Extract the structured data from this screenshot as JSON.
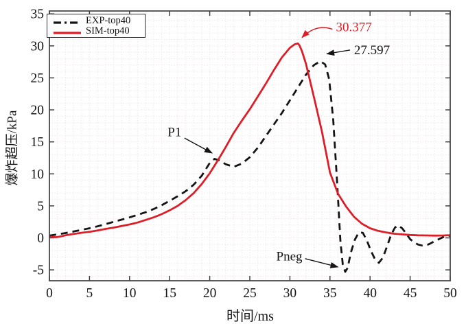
{
  "figure": {
    "background": "#ffffff",
    "axis_color": "#3f3f3f",
    "grid_color": "#efe3e3",
    "tick_label_color": "#141414"
  },
  "chart_data": {
    "type": "line",
    "title": "",
    "xlabel": "时间/ms",
    "ylabel": "爆炸超压/kPa",
    "xlim": [
      0,
      50
    ],
    "ylim": [
      -5,
      35
    ],
    "ylim_draw": [
      -6.7,
      35.45
    ],
    "xticks": [
      0,
      5,
      10,
      15,
      20,
      25,
      30,
      35,
      40,
      45,
      50
    ],
    "yticks": [
      -5,
      0,
      5,
      10,
      15,
      20,
      25,
      30,
      35
    ],
    "grid": "minor dotted grid, 1 ms x 1 kPa, on",
    "legend_position": "top-left",
    "peak_values": {
      "SIM-top40": 30.377,
      "EXP-top40": 27.597
    },
    "series": [
      {
        "name": "EXP-top40",
        "color": "#141414",
        "line_style": "dashed",
        "points": [
          [
            0,
            0.35
          ],
          [
            1,
            0.55
          ],
          [
            2,
            0.75
          ],
          [
            3,
            1.0
          ],
          [
            4,
            1.25
          ],
          [
            5,
            1.5
          ],
          [
            6,
            1.8
          ],
          [
            7,
            2.15
          ],
          [
            8,
            2.5
          ],
          [
            9,
            2.85
          ],
          [
            10,
            3.2
          ],
          [
            11,
            3.6
          ],
          [
            12,
            4.0
          ],
          [
            13,
            4.5
          ],
          [
            14,
            5.1
          ],
          [
            15,
            5.8
          ],
          [
            16,
            6.5
          ],
          [
            17,
            7.3
          ],
          [
            18,
            8.3
          ],
          [
            19,
            9.7
          ],
          [
            20,
            11.7
          ],
          [
            20.6,
            12.35
          ],
          [
            21.2,
            12.1
          ],
          [
            22,
            11.5
          ],
          [
            23,
            11.1
          ],
          [
            24,
            11.6
          ],
          [
            25,
            12.6
          ],
          [
            26,
            14.1
          ],
          [
            27,
            15.9
          ],
          [
            28,
            17.7
          ],
          [
            29,
            19.5
          ],
          [
            30,
            21.5
          ],
          [
            31,
            23.5
          ],
          [
            32,
            25.5
          ],
          [
            33,
            27.0
          ],
          [
            33.8,
            27.597
          ],
          [
            34.4,
            27.1
          ],
          [
            34.9,
            24.8
          ],
          [
            35.4,
            18.5
          ],
          [
            35.9,
            8.5
          ],
          [
            36.3,
            -0.5
          ],
          [
            36.6,
            -4.2
          ],
          [
            36.9,
            -5.3
          ],
          [
            37.2,
            -4.7
          ],
          [
            37.6,
            -2.3
          ],
          [
            38.1,
            -0.3
          ],
          [
            38.6,
            0.85
          ],
          [
            39.1,
            0.8
          ],
          [
            39.6,
            -0.4
          ],
          [
            40.1,
            -2.0
          ],
          [
            40.6,
            -3.3
          ],
          [
            41.1,
            -3.9
          ],
          [
            41.6,
            -3.1
          ],
          [
            42.1,
            -1.4
          ],
          [
            42.6,
            0.4
          ],
          [
            43.1,
            1.6
          ],
          [
            43.5,
            1.95
          ],
          [
            44,
            1.5
          ],
          [
            44.5,
            0.7
          ],
          [
            45,
            -0.2
          ],
          [
            45.5,
            -0.7
          ],
          [
            46,
            -1.05
          ],
          [
            46.5,
            -1.2
          ],
          [
            47,
            -1.15
          ],
          [
            47.5,
            -0.9
          ],
          [
            48,
            -0.55
          ],
          [
            48.5,
            -0.25
          ],
          [
            49,
            0.05
          ],
          [
            49.5,
            0.3
          ],
          [
            50,
            0.35
          ]
        ]
      },
      {
        "name": "SIM-top40",
        "color": "#dc1e28",
        "line_style": "solid",
        "points": [
          [
            0,
            0.2
          ],
          [
            0.8,
            0.1
          ],
          [
            1.5,
            0.25
          ],
          [
            2,
            0.4
          ],
          [
            3,
            0.6
          ],
          [
            4,
            0.8
          ],
          [
            5,
            0.95
          ],
          [
            6,
            1.15
          ],
          [
            7,
            1.4
          ],
          [
            8,
            1.6
          ],
          [
            9,
            1.85
          ],
          [
            10,
            2.1
          ],
          [
            11,
            2.4
          ],
          [
            12,
            2.8
          ],
          [
            13,
            3.2
          ],
          [
            14,
            3.7
          ],
          [
            15,
            4.3
          ],
          [
            16,
            5.0
          ],
          [
            17,
            5.9
          ],
          [
            18,
            7.0
          ],
          [
            19,
            8.4
          ],
          [
            20,
            10.1
          ],
          [
            21,
            12.1
          ],
          [
            22,
            14.2
          ],
          [
            23,
            16.4
          ],
          [
            24,
            18.3
          ],
          [
            25,
            20.1
          ],
          [
            26,
            22.1
          ],
          [
            27,
            24.1
          ],
          [
            28,
            26.2
          ],
          [
            29,
            28.2
          ],
          [
            30,
            29.7
          ],
          [
            30.6,
            30.25
          ],
          [
            31,
            30.377
          ],
          [
            31.2,
            30.05
          ],
          [
            31.5,
            29.2
          ],
          [
            32,
            27.2
          ],
          [
            33,
            22.0
          ],
          [
            34,
            16.6
          ],
          [
            35,
            10.2
          ],
          [
            36,
            6.9
          ],
          [
            37,
            4.9
          ],
          [
            38,
            3.3
          ],
          [
            39,
            2.2
          ],
          [
            40,
            1.5
          ],
          [
            41,
            1.1
          ],
          [
            42,
            0.85
          ],
          [
            43,
            0.65
          ],
          [
            44,
            0.55
          ],
          [
            45,
            0.45
          ],
          [
            46,
            0.4
          ],
          [
            47,
            0.38
          ],
          [
            48,
            0.36
          ],
          [
            49,
            0.37
          ],
          [
            50,
            0.42
          ]
        ]
      }
    ],
    "annotations": [
      {
        "text": "30.377",
        "color": "#dc1e28",
        "label": [
          35.75,
          33.0
        ],
        "arrow_from": [
          35.3,
          32.6
        ],
        "arrow_ctrl": [
          33.3,
          33.5
        ],
        "arrow_to": [
          31.5,
          31.3
        ]
      },
      {
        "text": "27.597",
        "color": "#141414",
        "label": [
          38.0,
          29.4
        ],
        "arrow_from": [
          37.5,
          29.35
        ],
        "arrow_to": [
          34.6,
          28.75
        ]
      },
      {
        "text": "P1",
        "color": "#141414",
        "label": [
          14.75,
          16.55
        ],
        "arrow_from": [
          16.85,
          15.6
        ],
        "arrow_to": [
          20.3,
          13.25
        ]
      },
      {
        "text": "Pneg",
        "color": "#141414",
        "label": [
          28.3,
          -2.85
        ],
        "arrow_from": [
          31.9,
          -3.25
        ],
        "arrow_to": [
          36.0,
          -4.55
        ]
      }
    ]
  }
}
